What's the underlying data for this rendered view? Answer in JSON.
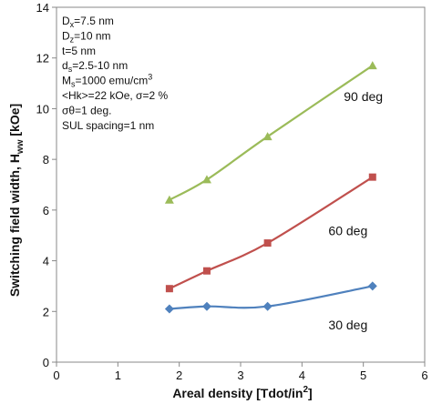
{
  "chart_data": {
    "type": "line",
    "xlabel": "Areal density [Tdot/in",
    "xlabel_sup": "2",
    "xlabel_end": "]",
    "ylabel_main": "Switching field width, H",
    "ylabel_sub": "ww",
    "ylabel_end": " [kOe]",
    "xlim": [
      0,
      6
    ],
    "ylim": [
      0,
      14
    ],
    "xticks": [
      "0",
      "1",
      "2",
      "3",
      "4",
      "5",
      "6"
    ],
    "yticks": [
      "0",
      "2",
      "4",
      "6",
      "8",
      "10",
      "12",
      "14"
    ],
    "grid": "none",
    "series": [
      {
        "name": "90 deg",
        "color": "#9bbb59",
        "marker": "triangle",
        "x": [
          1.84,
          2.45,
          3.44,
          5.15
        ],
        "y": [
          6.4,
          7.2,
          8.9,
          11.7
        ]
      },
      {
        "name": "60 deg",
        "color": "#c0504d",
        "marker": "square",
        "x": [
          1.84,
          2.45,
          3.44,
          5.15
        ],
        "y": [
          2.9,
          3.6,
          4.7,
          7.3
        ]
      },
      {
        "name": "30 deg",
        "color": "#4f81bd",
        "marker": "diamond",
        "x": [
          1.84,
          2.45,
          3.44,
          5.15
        ],
        "y": [
          2.1,
          2.2,
          2.2,
          3.0
        ]
      }
    ]
  },
  "params": [
    {
      "main": "D",
      "sub": "x",
      "rest": "=7.5 nm"
    },
    {
      "main": "D",
      "sub": "z",
      "rest": "=10 nm"
    },
    {
      "main": "t=5 nm",
      "sub": "",
      "rest": ""
    },
    {
      "main": "d",
      "sub": "s",
      "rest": "=2.5-10 nm"
    },
    {
      "main": "M",
      "sub": "s",
      "rest": "=1000 emu/cm",
      "sup": "3"
    },
    {
      "main": "<Hk>=22 kOe, σ=2 %",
      "sub": "",
      "rest": ""
    },
    {
      "main": "σθ=1 deg.",
      "sub": "",
      "rest": ""
    },
    {
      "main": "SUL spacing=1 nm",
      "sub": "",
      "rest": ""
    }
  ]
}
